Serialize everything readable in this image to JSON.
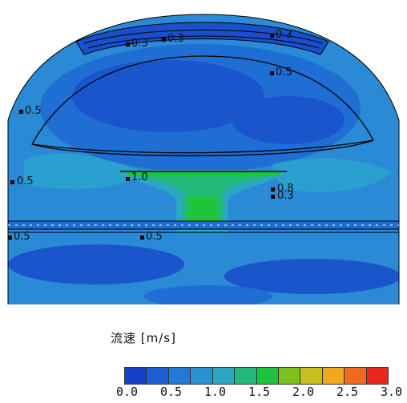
{
  "legend": {
    "title": "流速 [m/s]",
    "ticks": [
      "0.0",
      "0.5",
      "1.0",
      "1.5",
      "2.0",
      "2.5",
      "3.0"
    ],
    "colors": [
      "#1540c8",
      "#1b5fd4",
      "#2279d6",
      "#2a92d2",
      "#2aa8c0",
      "#22b87a",
      "#1ec43a",
      "#7cc21e",
      "#c8c01e",
      "#f0a81e",
      "#f06a1e",
      "#e8281e"
    ]
  },
  "contour_labels": [
    {
      "text": "0.3"
    },
    {
      "text": "0.3"
    },
    {
      "text": "0.3"
    },
    {
      "text": "0.5"
    },
    {
      "text": "0.5"
    },
    {
      "text": "0.5"
    },
    {
      "text": "1.0"
    },
    {
      "text": "0.8"
    },
    {
      "text": "0.3"
    },
    {
      "text": "0.5"
    },
    {
      "text": "0.5"
    }
  ]
}
